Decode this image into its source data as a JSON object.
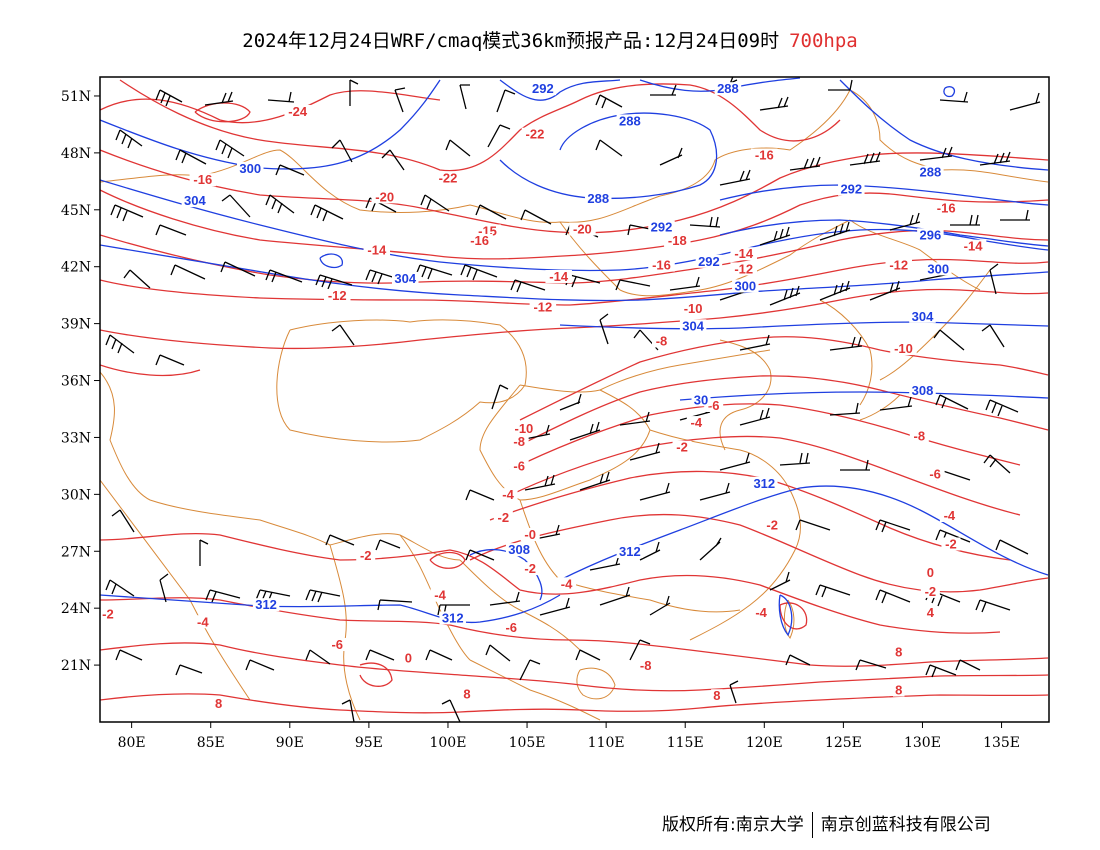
{
  "title": {
    "main": "2024年12月24日WRF/cmaq模式36km预报产品:12月24日09时",
    "level": "700hpa",
    "level_color": "#e03030"
  },
  "footer": {
    "copyright": "版权所有:南京大学",
    "company": "南京创蓝科技有限公司"
  },
  "colors": {
    "temperature": "#e03535",
    "height": "#1f3fe0",
    "borders": "#d88a3a",
    "wind": "#000000"
  },
  "chart_data": {
    "type": "map",
    "lat_labels": [
      "51N",
      "48N",
      "45N",
      "42N",
      "39N",
      "36N",
      "33N",
      "30N",
      "27N",
      "24N",
      "21N"
    ],
    "lat_values": [
      51,
      48,
      45,
      42,
      39,
      36,
      33,
      30,
      27,
      24,
      21
    ],
    "lon_labels": [
      "80E",
      "85E",
      "90E",
      "95E",
      "100E",
      "105E",
      "110E",
      "115E",
      "120E",
      "125E",
      "130E",
      "135E"
    ],
    "lon_values": [
      80,
      85,
      90,
      95,
      100,
      105,
      110,
      115,
      120,
      125,
      130,
      135
    ],
    "extent": {
      "lon": [
        78,
        138
      ],
      "lat": [
        18,
        52
      ]
    },
    "temperature_labels": [
      {
        "text": "-24",
        "lon": 90.5,
        "lat": 50.0
      },
      {
        "text": "-22",
        "lon": 105.5,
        "lat": 48.8
      },
      {
        "text": "-22",
        "lon": 100.0,
        "lat": 46.5
      },
      {
        "text": "-20",
        "lon": 96.0,
        "lat": 45.5
      },
      {
        "text": "-16",
        "lon": 84.5,
        "lat": 46.4
      },
      {
        "text": "-16",
        "lon": 120.0,
        "lat": 47.7
      },
      {
        "text": "-16",
        "lon": 131.5,
        "lat": 44.9
      },
      {
        "text": "-15",
        "lon": 102.5,
        "lat": 43.7
      },
      {
        "text": "-16",
        "lon": 102.0,
        "lat": 43.2
      },
      {
        "text": "-20",
        "lon": 108.5,
        "lat": 43.8
      },
      {
        "text": "-18",
        "lon": 114.5,
        "lat": 43.2
      },
      {
        "text": "-14",
        "lon": 95.5,
        "lat": 42.7
      },
      {
        "text": "-14",
        "lon": 118.7,
        "lat": 42.5
      },
      {
        "text": "-14",
        "lon": 133.2,
        "lat": 42.9
      },
      {
        "text": "-16",
        "lon": 113.5,
        "lat": 41.9
      },
      {
        "text": "-12",
        "lon": 118.7,
        "lat": 41.7
      },
      {
        "text": "-12",
        "lon": 128.5,
        "lat": 41.9
      },
      {
        "text": "-14",
        "lon": 107.0,
        "lat": 41.3
      },
      {
        "text": "-12",
        "lon": 93.0,
        "lat": 40.3
      },
      {
        "text": "-12",
        "lon": 106.0,
        "lat": 39.7
      },
      {
        "text": "-10",
        "lon": 115.5,
        "lat": 39.6
      },
      {
        "text": "-10",
        "lon": 128.8,
        "lat": 37.5
      },
      {
        "text": "-8",
        "lon": 113.5,
        "lat": 37.9
      },
      {
        "text": "-6",
        "lon": 116.8,
        "lat": 34.5
      },
      {
        "text": "-8",
        "lon": 129.8,
        "lat": 32.9
      },
      {
        "text": "-10",
        "lon": 104.8,
        "lat": 33.3
      },
      {
        "text": "-8",
        "lon": 104.5,
        "lat": 32.6
      },
      {
        "text": "-6",
        "lon": 104.5,
        "lat": 31.3
      },
      {
        "text": "-4",
        "lon": 115.7,
        "lat": 33.6
      },
      {
        "text": "-2",
        "lon": 114.8,
        "lat": 32.3
      },
      {
        "text": "-4",
        "lon": 103.8,
        "lat": 29.8
      },
      {
        "text": "-2",
        "lon": 103.5,
        "lat": 28.6
      },
      {
        "text": "-6",
        "lon": 130.8,
        "lat": 30.9
      },
      {
        "text": "-4",
        "lon": 131.7,
        "lat": 28.7
      },
      {
        "text": "-2",
        "lon": 131.8,
        "lat": 27.2
      },
      {
        "text": "-0",
        "lon": 105.2,
        "lat": 27.7
      },
      {
        "text": "-2",
        "lon": 105.2,
        "lat": 25.9
      },
      {
        "text": "-2",
        "lon": 94.8,
        "lat": 26.6
      },
      {
        "text": "-4",
        "lon": 107.5,
        "lat": 25.1
      },
      {
        "text": "-4",
        "lon": 99.5,
        "lat": 24.5
      },
      {
        "text": "-6",
        "lon": 104.0,
        "lat": 22.8
      },
      {
        "text": "-4",
        "lon": 84.5,
        "lat": 23.1
      },
      {
        "text": "-2",
        "lon": 78.5,
        "lat": 23.5
      },
      {
        "text": "-2",
        "lon": 120.5,
        "lat": 28.2
      },
      {
        "text": "-4",
        "lon": 119.8,
        "lat": 23.6
      },
      {
        "text": "0",
        "lon": 130.5,
        "lat": 25.7
      },
      {
        "text": "-2",
        "lon": 130.5,
        "lat": 24.7
      },
      {
        "text": "4",
        "lon": 130.5,
        "lat": 23.6
      },
      {
        "text": "-6",
        "lon": 93.0,
        "lat": 21.9
      },
      {
        "text": "-8",
        "lon": 112.5,
        "lat": 20.8
      },
      {
        "text": "8",
        "lon": 128.5,
        "lat": 21.5
      },
      {
        "text": "8",
        "lon": 85.5,
        "lat": 18.8
      },
      {
        "text": "8",
        "lon": 101.2,
        "lat": 19.3
      },
      {
        "text": "8",
        "lon": 117.0,
        "lat": 19.2
      },
      {
        "text": "8",
        "lon": 128.5,
        "lat": 19.5
      },
      {
        "text": "0",
        "lon": 97.5,
        "lat": 21.2
      }
    ],
    "height_labels": [
      {
        "text": "292",
        "lon": 106.0,
        "lat": 51.2
      },
      {
        "text": "288",
        "lon": 117.7,
        "lat": 51.2
      },
      {
        "text": "288",
        "lon": 111.5,
        "lat": 49.5
      },
      {
        "text": "300",
        "lon": 87.5,
        "lat": 47.0
      },
      {
        "text": "288",
        "lon": 130.5,
        "lat": 46.8
      },
      {
        "text": "292",
        "lon": 125.5,
        "lat": 45.9
      },
      {
        "text": "288",
        "lon": 109.5,
        "lat": 45.4
      },
      {
        "text": "304",
        "lon": 84.0,
        "lat": 45.3
      },
      {
        "text": "292",
        "lon": 113.5,
        "lat": 43.9
      },
      {
        "text": "296",
        "lon": 130.5,
        "lat": 43.5
      },
      {
        "text": "292",
        "lon": 116.5,
        "lat": 42.1
      },
      {
        "text": "300",
        "lon": 131.0,
        "lat": 41.7
      },
      {
        "text": "304",
        "lon": 97.3,
        "lat": 41.2
      },
      {
        "text": "300",
        "lon": 118.8,
        "lat": 40.8
      },
      {
        "text": "304",
        "lon": 130.0,
        "lat": 39.2
      },
      {
        "text": "304",
        "lon": 115.5,
        "lat": 38.7
      },
      {
        "text": "308",
        "lon": 130.0,
        "lat": 35.3
      },
      {
        "text": "30",
        "lon": 116.0,
        "lat": 34.8
      },
      {
        "text": "312",
        "lon": 120.0,
        "lat": 30.4
      },
      {
        "text": "312",
        "lon": 111.5,
        "lat": 26.8
      },
      {
        "text": "308",
        "lon": 104.5,
        "lat": 26.9
      },
      {
        "text": "312",
        "lon": 88.5,
        "lat": 24.0
      },
      {
        "text": "312",
        "lon": 100.3,
        "lat": 23.3
      }
    ]
  }
}
